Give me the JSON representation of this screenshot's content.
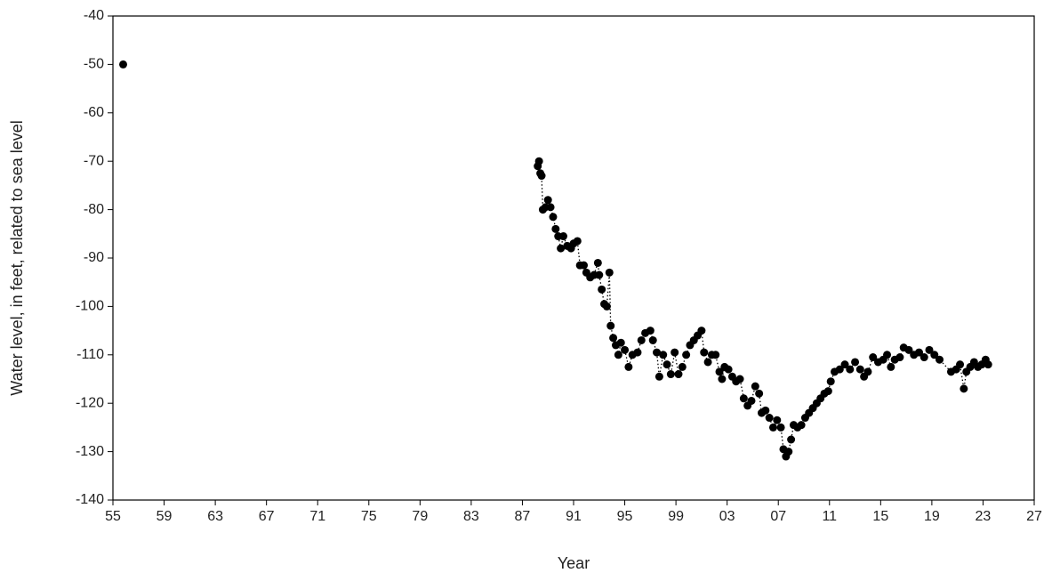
{
  "chart_data": {
    "type": "scatter",
    "x_label": "Year",
    "y_label": "Water level, in feet, related to sea level",
    "color": "#000000",
    "line_style": "dotted",
    "xlim": [
      1955,
      2027
    ],
    "ylim": [
      -140,
      -40
    ],
    "xticks": [
      {
        "value": 1955,
        "label": "55"
      },
      {
        "value": 1959,
        "label": "59"
      },
      {
        "value": 1963,
        "label": "63"
      },
      {
        "value": 1967,
        "label": "67"
      },
      {
        "value": 1971,
        "label": "71"
      },
      {
        "value": 1975,
        "label": "75"
      },
      {
        "value": 1979,
        "label": "79"
      },
      {
        "value": 1983,
        "label": "83"
      },
      {
        "value": 1987,
        "label": "87"
      },
      {
        "value": 1991,
        "label": "91"
      },
      {
        "value": 1995,
        "label": "95"
      },
      {
        "value": 1999,
        "label": "99"
      },
      {
        "value": 2003,
        "label": "03"
      },
      {
        "value": 2007,
        "label": "07"
      },
      {
        "value": 2011,
        "label": "11"
      },
      {
        "value": 2015,
        "label": "15"
      },
      {
        "value": 2019,
        "label": "19"
      },
      {
        "value": 2023,
        "label": "23"
      },
      {
        "value": 2027,
        "label": "27"
      }
    ],
    "yticks": [
      -140,
      -130,
      -120,
      -110,
      -100,
      -90,
      -80,
      -70,
      -60,
      -50,
      -40
    ],
    "x": [
      1955.8,
      1988.2,
      1988.3,
      1988.4,
      1988.5,
      1988.6,
      1988.8,
      1989.0,
      1989.2,
      1989.4,
      1989.6,
      1989.8,
      1990.0,
      1990.2,
      1990.5,
      1990.8,
      1991.0,
      1991.3,
      1991.5,
      1991.8,
      1992.0,
      1992.3,
      1992.6,
      1992.9,
      1993.0,
      1993.2,
      1993.4,
      1993.6,
      1993.8,
      1993.9,
      1994.1,
      1994.3,
      1994.5,
      1994.7,
      1995.0,
      1995.3,
      1995.6,
      1996.0,
      1996.3,
      1996.6,
      1997.0,
      1997.2,
      1997.5,
      1997.7,
      1998.0,
      1998.3,
      1998.6,
      1998.9,
      1999.2,
      1999.5,
      1999.8,
      2000.1,
      2000.4,
      2000.7,
      2001.0,
      2001.2,
      2001.5,
      2001.8,
      2002.1,
      2002.4,
      2002.6,
      2002.8,
      2003.1,
      2003.4,
      2003.7,
      2004.0,
      2004.3,
      2004.6,
      2004.9,
      2005.2,
      2005.5,
      2005.7,
      2006.0,
      2006.3,
      2006.6,
      2006.9,
      2007.2,
      2007.4,
      2007.6,
      2007.8,
      2008.0,
      2008.2,
      2008.5,
      2008.8,
      2009.1,
      2009.4,
      2009.7,
      2010.0,
      2010.3,
      2010.6,
      2010.9,
      2011.1,
      2011.4,
      2011.8,
      2012.2,
      2012.6,
      2013.0,
      2013.4,
      2013.7,
      2014.0,
      2014.4,
      2014.8,
      2015.2,
      2015.5,
      2015.8,
      2016.1,
      2016.5,
      2016.8,
      2017.2,
      2017.6,
      2018.0,
      2018.4,
      2018.8,
      2019.2,
      2019.6,
      2020.5,
      2020.9,
      2021.2,
      2021.5,
      2021.7,
      2022.0,
      2022.3,
      2022.6,
      2022.9,
      2023.2,
      2023.4
    ],
    "values": [
      -50,
      -71,
      -70,
      -72.5,
      -73,
      -80,
      -79.5,
      -78,
      -79.5,
      -81.5,
      -84,
      -85.5,
      -88,
      -85.5,
      -87.5,
      -88,
      -87,
      -86.5,
      -91.5,
      -91.5,
      -93,
      -94,
      -93.5,
      -91,
      -93.5,
      -96.5,
      -99.5,
      -100,
      -93,
      -104,
      -106.5,
      -108,
      -110,
      -107.5,
      -109,
      -112.5,
      -110,
      -109.5,
      -107,
      -105.5,
      -105,
      -107,
      -109.5,
      -114.5,
      -110,
      -112,
      -114,
      -109.5,
      -114,
      -112.5,
      -110,
      -108,
      -107,
      -106,
      -105,
      -109.5,
      -111.5,
      -110,
      -110,
      -113.5,
      -115,
      -112.5,
      -113,
      -114.5,
      -115.5,
      -115,
      -119,
      -120.5,
      -119.5,
      -116.5,
      -118,
      -122,
      -121.5,
      -123,
      -125,
      -123.5,
      -125,
      -129.5,
      -131,
      -130,
      -127.5,
      -124.5,
      -125,
      -124.5,
      -123,
      -122,
      -121,
      -120,
      -119,
      -118,
      -117.5,
      -115.5,
      -113.5,
      -113,
      -112,
      -113,
      -111.5,
      -113,
      -114.5,
      -113.5,
      -110.5,
      -111.5,
      -111,
      -110,
      -112.5,
      -111,
      -110.5,
      -108.5,
      -109,
      -110,
      -109.5,
      -110.5,
      -109,
      -110,
      -111,
      -113.5,
      -113,
      -112,
      -117,
      -113.5,
      -112.5,
      -111.5,
      -112.5,
      -112,
      -111,
      -112
    ]
  }
}
